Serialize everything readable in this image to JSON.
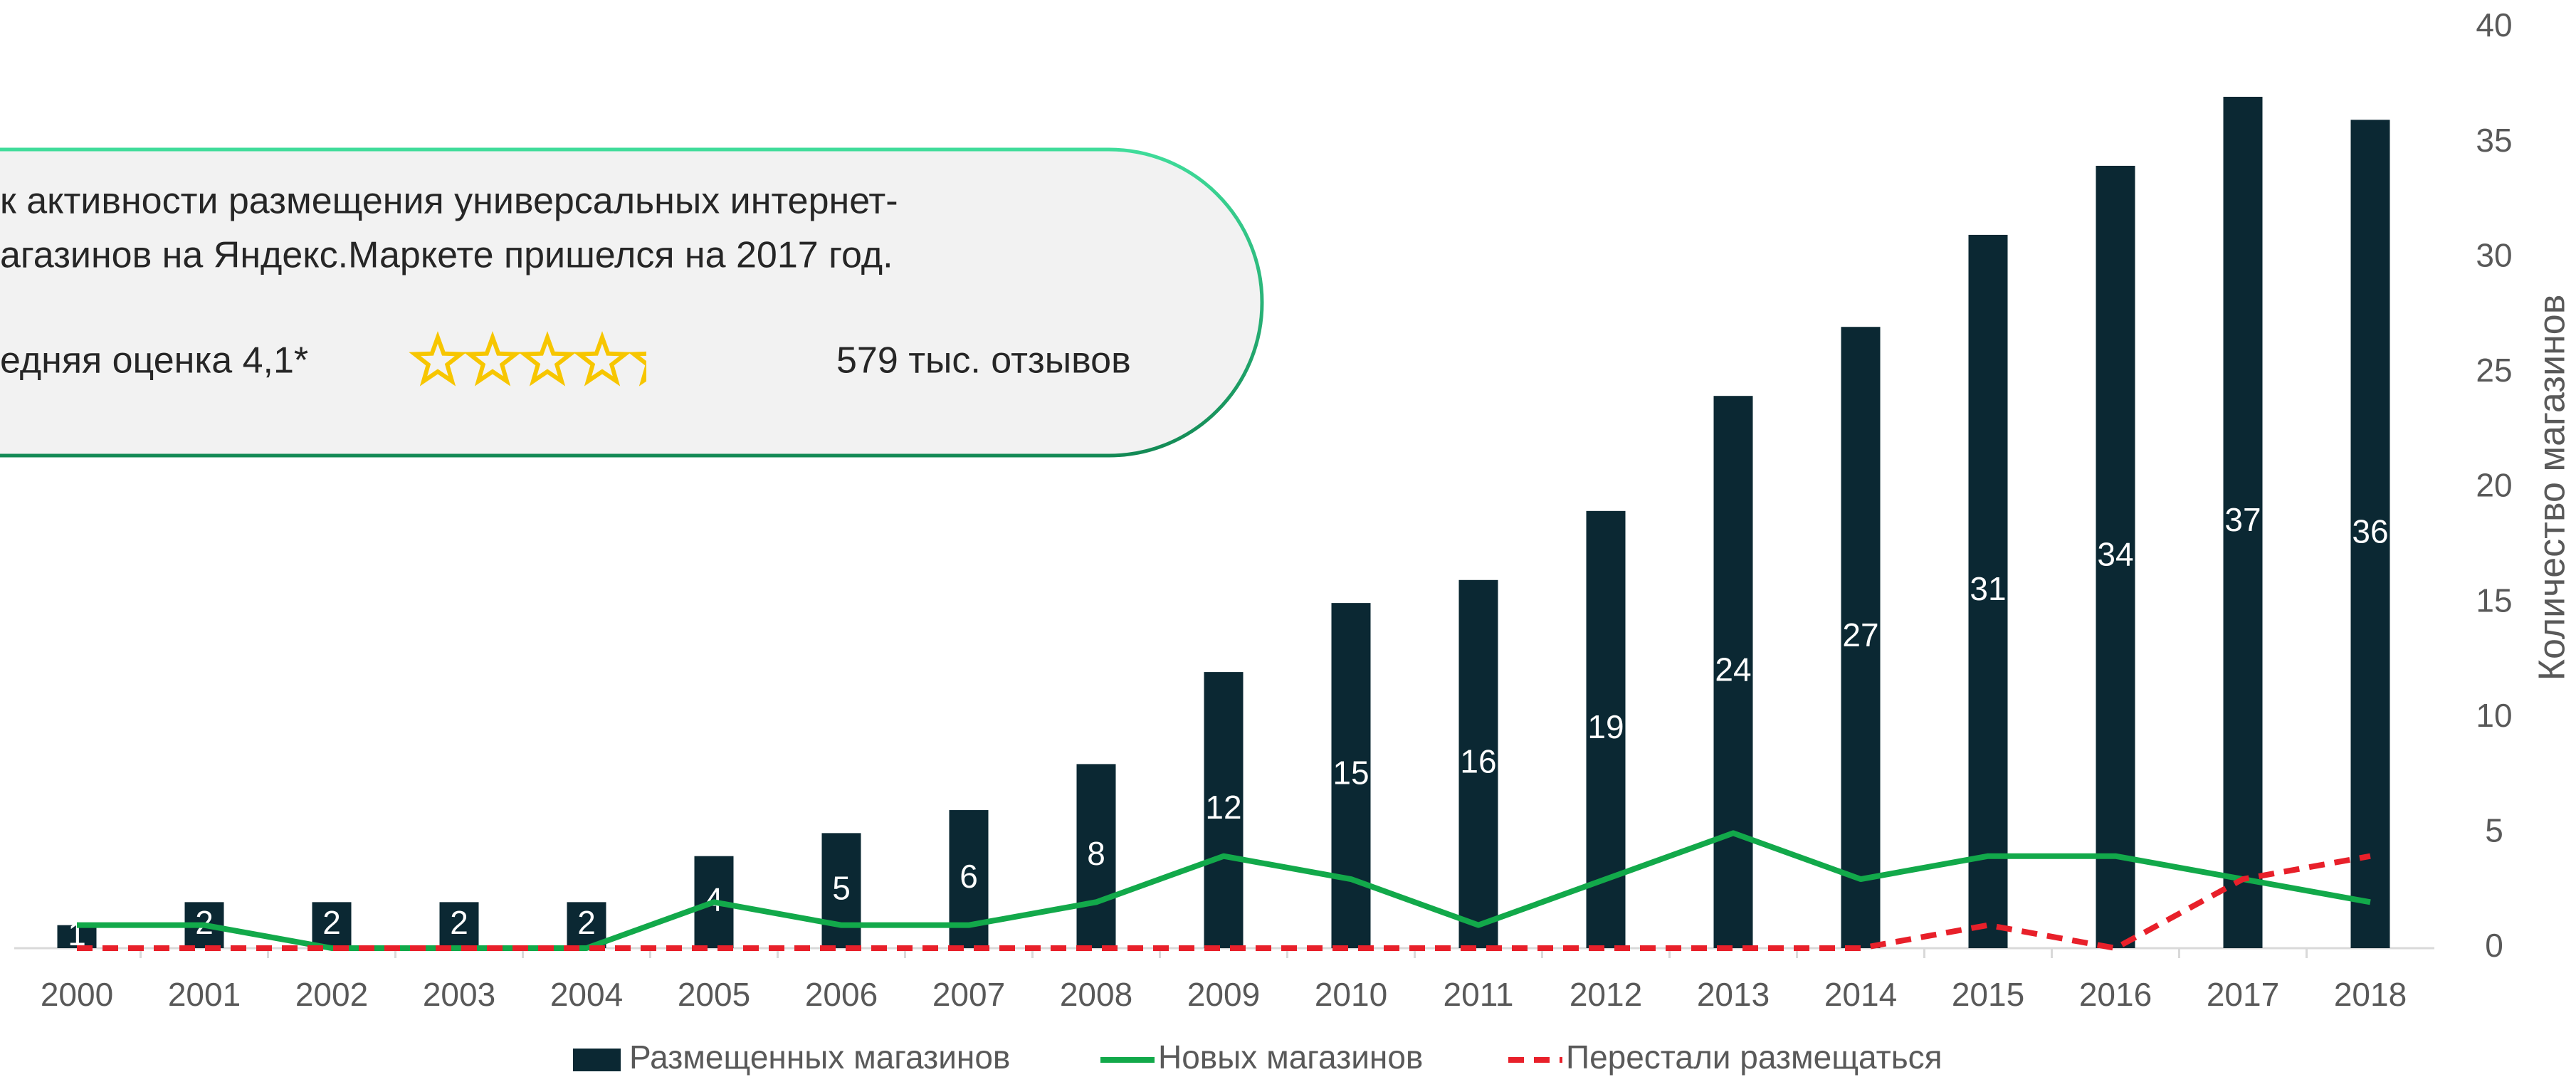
{
  "callout": {
    "line1": "к активности размещения универсальных интернет-",
    "line2": "агазинов на Яндекс.Маркете пришелся на 2017 год.",
    "rating": "едняя оценка 4,1*",
    "reviews": "579 тыс. отзывов"
  },
  "chart_data": {
    "type": "bar",
    "categories": [
      "2000",
      "2001",
      "2002",
      "2003",
      "2004",
      "2005",
      "2006",
      "2007",
      "2008",
      "2009",
      "2010",
      "2011",
      "2012",
      "2013",
      "2014",
      "2015",
      "2016",
      "2017",
      "2018"
    ],
    "series": [
      {
        "name": "Размещенных магазинов",
        "color": "#0b2833",
        "type": "bar",
        "values": [
          1,
          2,
          2,
          2,
          2,
          4,
          5,
          6,
          8,
          12,
          15,
          16,
          19,
          24,
          27,
          31,
          34,
          37,
          36
        ]
      },
      {
        "name": "Новых магазинов",
        "color": "#12a94a",
        "type": "line",
        "values": [
          1,
          1,
          0,
          0,
          0,
          2,
          1,
          1,
          2,
          4,
          3,
          1,
          3,
          5,
          3,
          4,
          4,
          3,
          2
        ]
      },
      {
        "name": "Перестали размещаться",
        "color": "#e8202a",
        "type": "dashed",
        "values": [
          0,
          0,
          0,
          0,
          0,
          0,
          0,
          0,
          0,
          0,
          0,
          0,
          0,
          0,
          0,
          1,
          0,
          3,
          4
        ]
      }
    ],
    "y_label": "Количество магазинов",
    "ylim": [
      0,
      40
    ],
    "yticks": [
      0,
      5,
      10,
      15,
      20,
      25,
      30,
      35,
      40
    ]
  }
}
